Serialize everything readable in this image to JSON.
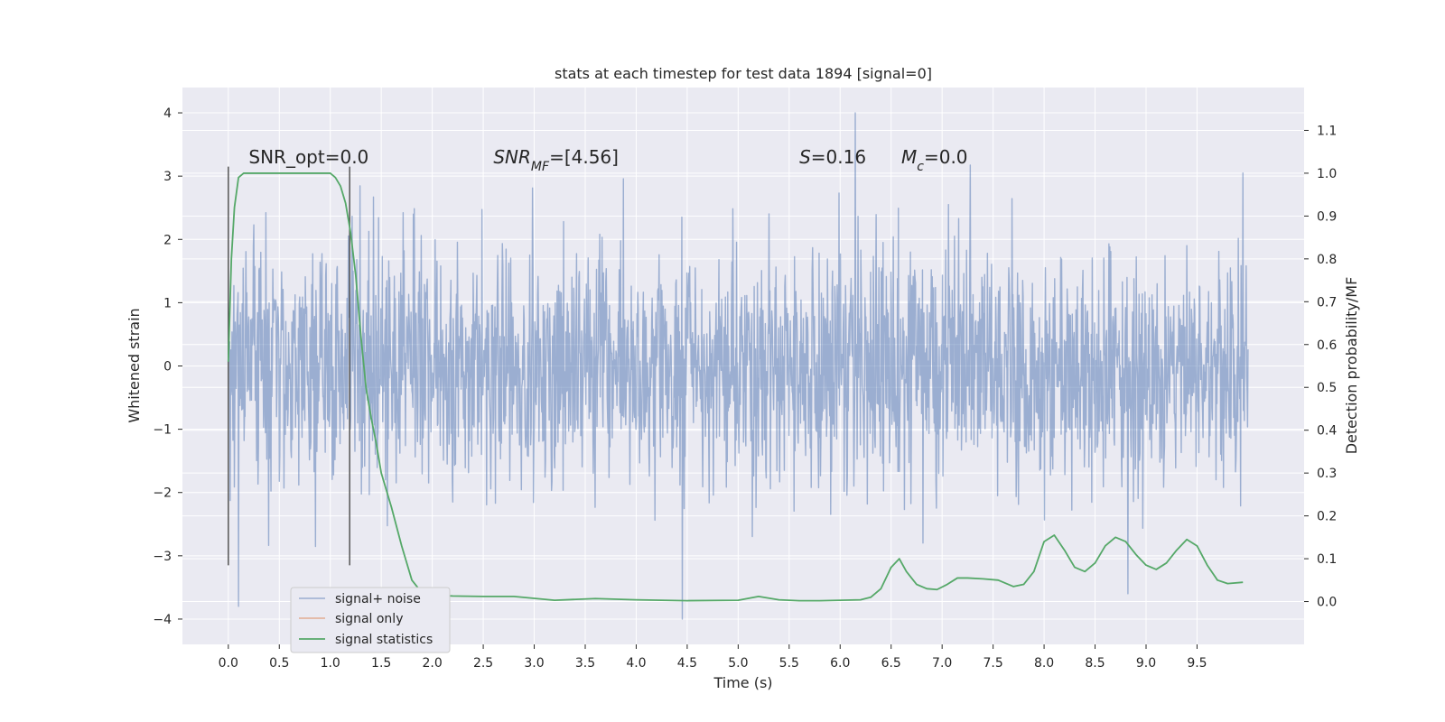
{
  "chart_data": {
    "type": "line",
    "title": "stats at each timestep for test data 1894 [signal=0]",
    "xlabel": "Time (s)",
    "ylabel": "Whitened strain",
    "y2label": "Detection probability/MF",
    "xlim": [
      -0.45,
      10.55
    ],
    "ylim": [
      -4.4,
      4.4
    ],
    "y2lim": [
      -0.1,
      1.2
    ],
    "xticks": [
      0.0,
      0.5,
      1.0,
      1.5,
      2.0,
      2.5,
      3.0,
      3.5,
      4.0,
      4.5,
      5.0,
      5.5,
      6.0,
      6.5,
      7.0,
      7.5,
      8.0,
      8.5,
      9.0,
      9.5
    ],
    "yticks": [
      -4,
      -3,
      -2,
      -1,
      0,
      1,
      2,
      3,
      4
    ],
    "ytick_labels": [
      "−4",
      "−3",
      "−2",
      "−1",
      "0",
      "1",
      "2",
      "3",
      "4"
    ],
    "y2ticks": [
      0.0,
      0.1,
      0.2,
      0.3,
      0.4,
      0.5,
      0.6,
      0.7,
      0.8,
      0.9,
      1.0,
      1.1
    ],
    "grid": true,
    "legend_position": "lower-left",
    "background": "#eaeaf2",
    "annotations": [
      {
        "id": "snr-opt",
        "x": 0.2,
        "y": 3.2,
        "parts": [
          {
            "t": "SNR_opt=0.0"
          }
        ]
      },
      {
        "id": "snr-mf",
        "x": 2.6,
        "y": 3.2,
        "parts": [
          {
            "t": "SNR",
            "i": true
          },
          {
            "t": "MF",
            "i": true,
            "sub": true
          },
          {
            "t": "=[4.56]"
          }
        ]
      },
      {
        "id": "s-value",
        "x": 5.6,
        "y": 3.2,
        "parts": [
          {
            "t": "S",
            "i": true
          },
          {
            "t": "=0.16"
          }
        ]
      },
      {
        "id": "mc-value",
        "x": 6.6,
        "y": 3.2,
        "parts": [
          {
            "t": "M",
            "i": true
          },
          {
            "t": "c",
            "i": true,
            "sub": true
          },
          {
            "t": "=0.0"
          }
        ]
      }
    ],
    "vlines": [
      {
        "x": 0.0,
        "ymin": -3.15,
        "ymax": 3.15
      },
      {
        "x": 1.19,
        "ymin": -3.15,
        "ymax": 3.15
      }
    ],
    "series": [
      {
        "name": "signal+ noise",
        "color": "#4c72b0",
        "alpha": 0.5,
        "axis": "left",
        "x_range": [
          0.0,
          10.0
        ],
        "sigma": 0.95,
        "seed": 1894,
        "approx_band": [
          -1.3,
          1.3
        ],
        "approx_extremes": [
          [
            0.1,
            -3.8
          ],
          [
            4.45,
            -4.0
          ],
          [
            6.15,
            4.0
          ],
          [
            8.82,
            -3.6
          ],
          [
            9.95,
            3.05
          ]
        ]
      },
      {
        "name": "signal only",
        "color": "#dd8452",
        "axis": "left",
        "x": [],
        "y": []
      },
      {
        "name": "signal statistics",
        "color": "#55a868",
        "axis": "right",
        "x": [
          0.0,
          0.03,
          0.06,
          0.1,
          0.15,
          0.2,
          0.3,
          0.4,
          0.5,
          0.6,
          0.7,
          0.8,
          0.9,
          1.0,
          1.05,
          1.1,
          1.15,
          1.2,
          1.25,
          1.3,
          1.35,
          1.4,
          1.45,
          1.5,
          1.6,
          1.7,
          1.8,
          1.9,
          2.0,
          2.2,
          2.5,
          2.8,
          3.2,
          3.6,
          4.0,
          4.5,
          5.0,
          5.2,
          5.4,
          5.6,
          5.8,
          6.0,
          6.2,
          6.3,
          6.4,
          6.5,
          6.58,
          6.65,
          6.75,
          6.85,
          6.95,
          7.05,
          7.15,
          7.25,
          7.4,
          7.55,
          7.7,
          7.8,
          7.9,
          8.0,
          8.1,
          8.2,
          8.3,
          8.4,
          8.5,
          8.6,
          8.7,
          8.8,
          8.9,
          9.0,
          9.1,
          9.2,
          9.3,
          9.4,
          9.5,
          9.6,
          9.7,
          9.8,
          9.95
        ],
        "y": [
          0.56,
          0.8,
          0.92,
          0.99,
          1.0,
          1.0,
          1.0,
          1.0,
          1.0,
          1.0,
          1.0,
          1.0,
          1.0,
          1.0,
          0.99,
          0.97,
          0.93,
          0.86,
          0.76,
          0.62,
          0.5,
          0.43,
          0.37,
          0.3,
          0.22,
          0.13,
          0.05,
          0.02,
          0.015,
          0.013,
          0.012,
          0.012,
          0.003,
          0.007,
          0.004,
          0.002,
          0.003,
          0.012,
          0.004,
          0.002,
          0.002,
          0.003,
          0.004,
          0.01,
          0.03,
          0.08,
          0.1,
          0.07,
          0.04,
          0.03,
          0.028,
          0.04,
          0.055,
          0.055,
          0.053,
          0.05,
          0.035,
          0.04,
          0.07,
          0.14,
          0.155,
          0.12,
          0.08,
          0.07,
          0.09,
          0.13,
          0.15,
          0.14,
          0.11,
          0.085,
          0.075,
          0.09,
          0.12,
          0.145,
          0.13,
          0.085,
          0.05,
          0.042,
          0.045
        ]
      }
    ]
  }
}
